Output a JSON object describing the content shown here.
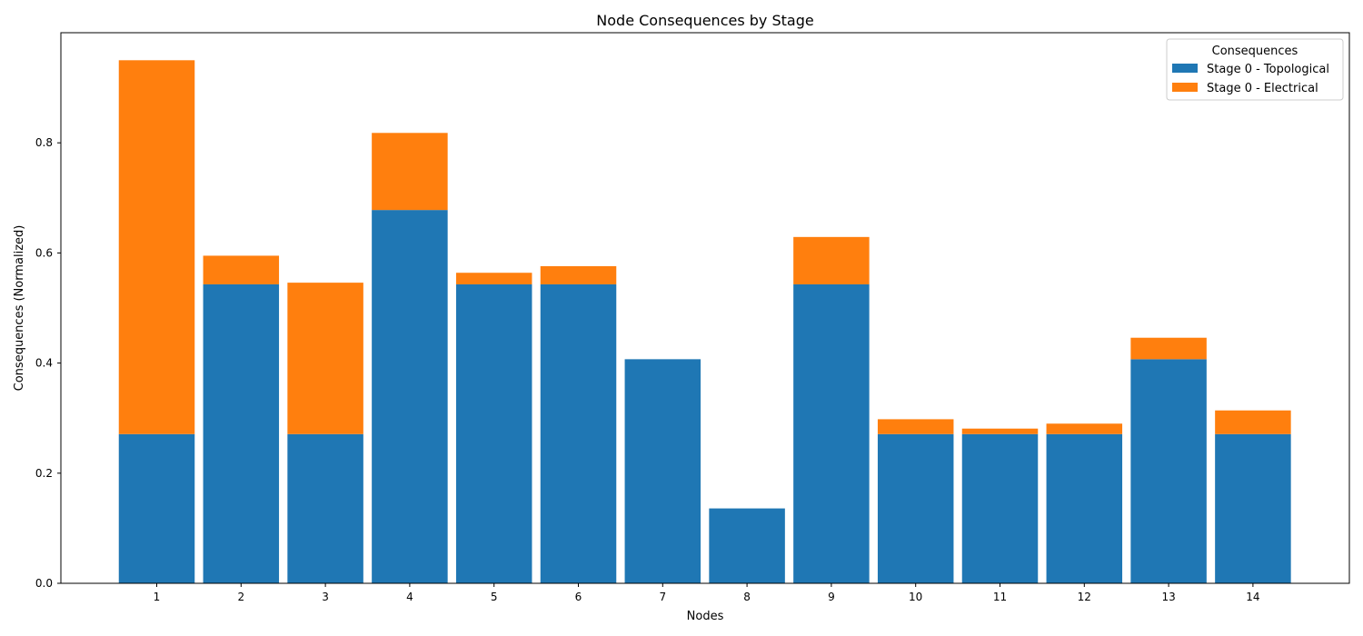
{
  "chart_data": {
    "type": "bar",
    "stacked": true,
    "title": "Node Consequences by Stage",
    "xlabel": "Nodes",
    "ylabel": "Consequences (Normalized)",
    "categories": [
      "1",
      "2",
      "3",
      "4",
      "5",
      "6",
      "7",
      "8",
      "9",
      "10",
      "11",
      "12",
      "13",
      "14"
    ],
    "ylim": [
      0,
      1.0
    ],
    "yticks": [
      "0.0",
      "0.2",
      "0.4",
      "0.6",
      "0.8"
    ],
    "grid": false,
    "series": [
      {
        "name": "Stage 0 - Topological",
        "color": "#1f77b4",
        "values": [
          0.271,
          0.543,
          0.271,
          0.678,
          0.543,
          0.543,
          0.407,
          0.136,
          0.543,
          0.271,
          0.271,
          0.271,
          0.407,
          0.271
        ]
      },
      {
        "name": "Stage 0 - Electrical",
        "color": "#ff7f0e",
        "values": [
          0.679,
          0.052,
          0.275,
          0.14,
          0.021,
          0.033,
          0.0,
          0.0,
          0.086,
          0.027,
          0.01,
          0.019,
          0.039,
          0.043
        ]
      }
    ],
    "legend": {
      "title": "Consequences",
      "position": "top-right"
    }
  }
}
